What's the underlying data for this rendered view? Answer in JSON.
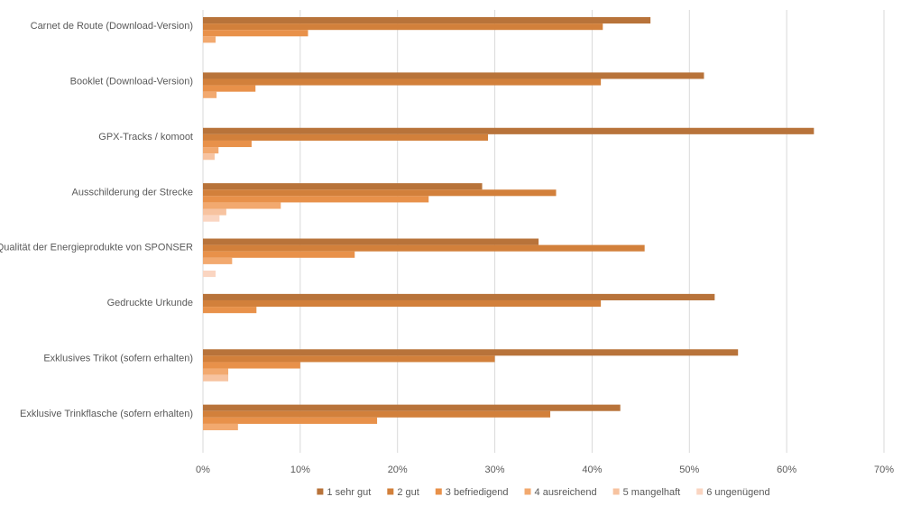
{
  "chart_data": {
    "type": "bar",
    "orientation": "horizontal",
    "categories": [
      "Carnet de Route (Download-Version)",
      "Booklet (Download-Version)",
      "GPX-Tracks / komoot",
      "Ausschilderung der Strecke",
      "Qualität der Energieprodukte von SPONSER",
      "Gedruckte Urkunde",
      "Exklusives Trikot (sofern erhalten)",
      "Exklusive Trinkflasche (sofern erhalten)"
    ],
    "series": [
      {
        "name": "1 sehr gut",
        "color": "#B8733A",
        "values": [
          46.0,
          51.5,
          62.8,
          28.7,
          34.5,
          52.6,
          55.0,
          42.9
        ]
      },
      {
        "name": "2 gut",
        "color": "#D2803B",
        "values": [
          41.1,
          40.9,
          29.3,
          36.3,
          45.4,
          40.9,
          30.0,
          35.7
        ]
      },
      {
        "name": "3 befriedigend",
        "color": "#E8914A",
        "values": [
          10.8,
          5.4,
          5.0,
          23.2,
          15.6,
          5.5,
          10.0,
          17.9
        ]
      },
      {
        "name": "4 ausreichend",
        "color": "#F2A96F",
        "values": [
          1.3,
          1.4,
          1.6,
          8.0,
          3.0,
          0,
          2.6,
          3.6
        ]
      },
      {
        "name": "5 mangelhaft",
        "color": "#F7C3A0",
        "values": [
          0,
          0,
          1.2,
          2.4,
          0,
          0,
          2.6,
          0
        ]
      },
      {
        "name": "6 ungenügend",
        "color": "#FAD5C1",
        "values": [
          0,
          0,
          0,
          1.7,
          1.3,
          0,
          0,
          0
        ]
      }
    ],
    "xticks": [
      "0%",
      "10%",
      "20%",
      "30%",
      "40%",
      "50%",
      "60%",
      "70%"
    ],
    "xlim": [
      0,
      70
    ],
    "xlabel": "",
    "ylabel": "",
    "title": "",
    "grid": "vertical",
    "legend_position": "bottom"
  }
}
